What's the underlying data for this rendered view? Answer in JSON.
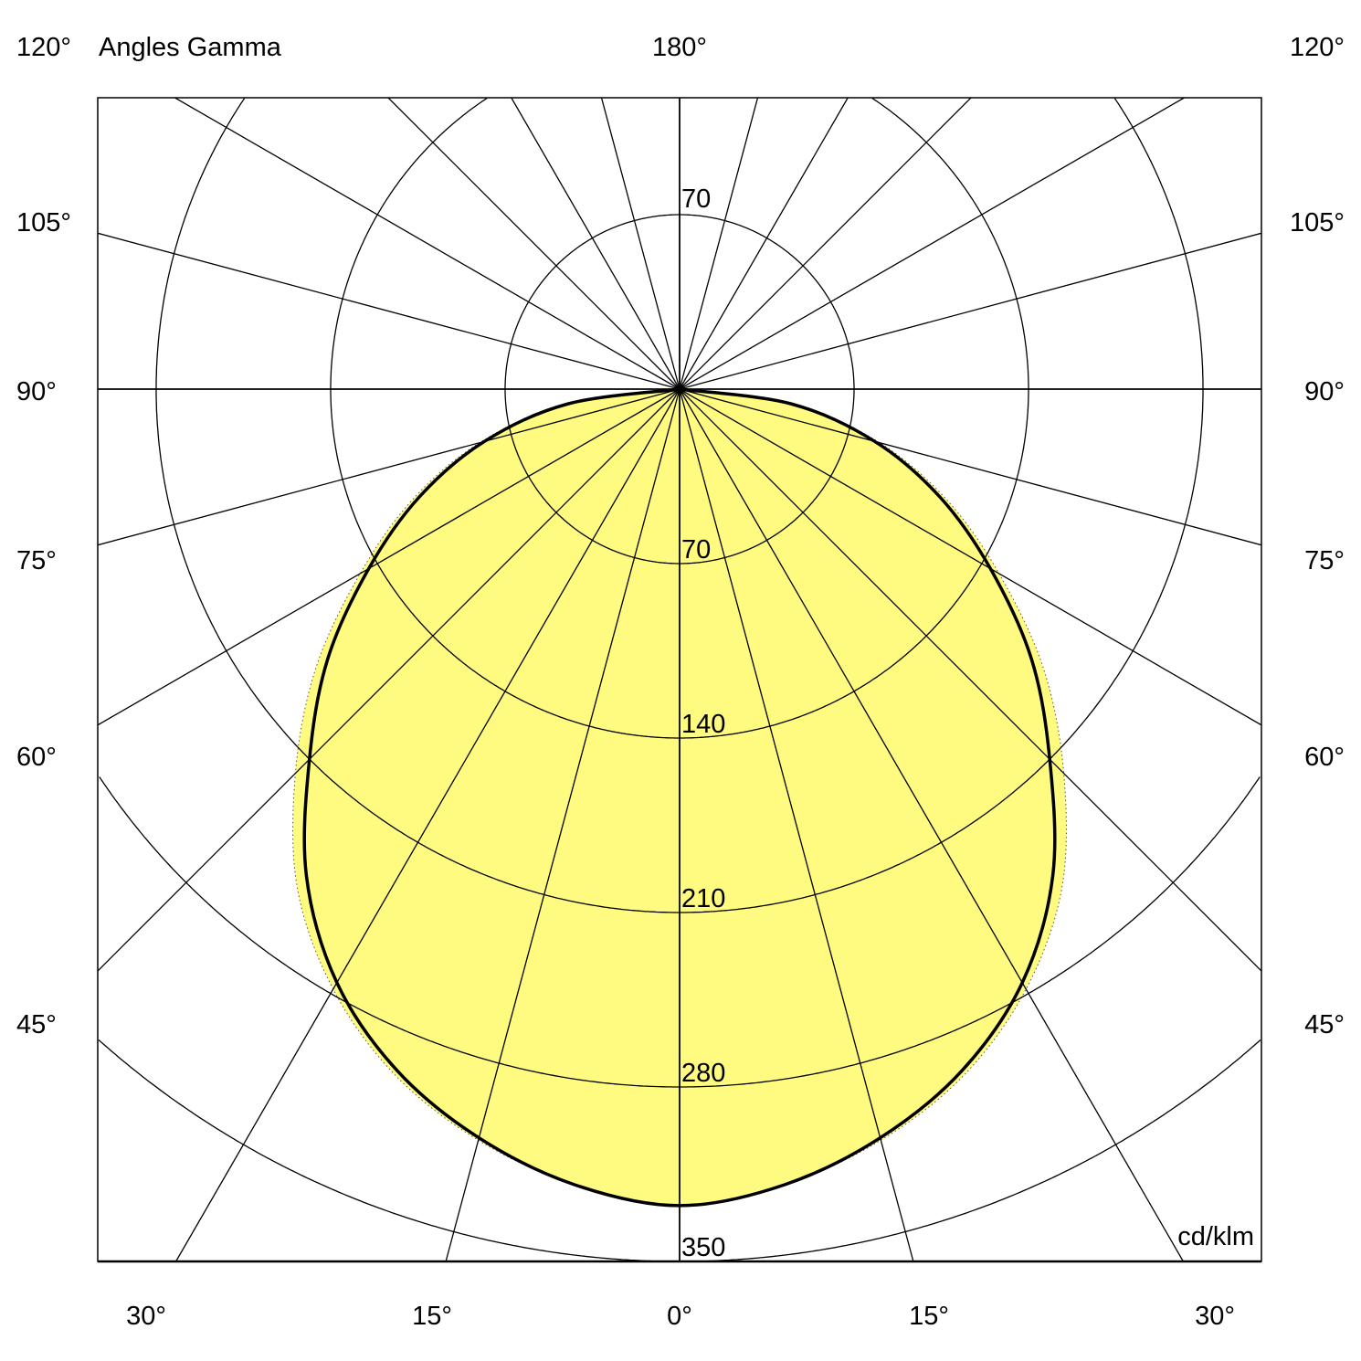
{
  "chart_data": {
    "type": "polar",
    "title": "Angles Gamma",
    "unit_label": "cd/klm",
    "radial_ticks": [
      70,
      140,
      210,
      280,
      350
    ],
    "radial_tick_labels": [
      "70",
      "140",
      "210",
      "280",
      "350"
    ],
    "radial_range": [
      0,
      350
    ],
    "top_ring_label": "70",
    "angle_tick_labels": {
      "top": "180°",
      "top_left": "120°",
      "top_right": "120°",
      "left": [
        "105°",
        "90°",
        "75°",
        "60°",
        "45°"
      ],
      "right": [
        "105°",
        "90°",
        "75°",
        "60°",
        "45°"
      ],
      "bottom": [
        "30°",
        "15°",
        "0°",
        "15°",
        "30°"
      ]
    },
    "grid": true,
    "radial_line_step_deg": 15,
    "gamma": [
      0,
      7.5,
      15,
      22.5,
      30,
      37.5,
      45,
      52.5,
      60,
      67.5,
      75,
      82.5,
      90
    ],
    "series": [
      {
        "style": "thick black line",
        "color": "#000000",
        "values": [
          327.6,
          322,
          311,
          296,
          275,
          246,
          210,
          178,
          144,
          113,
          81,
          45,
          0
        ]
      },
      {
        "style": "yellow fill, dotted outline",
        "color": "#FFFA80",
        "values": [
          327.6,
          322,
          312,
          298,
          278,
          252,
          218,
          184,
          148,
          116,
          83,
          46,
          0
        ]
      }
    ]
  }
}
